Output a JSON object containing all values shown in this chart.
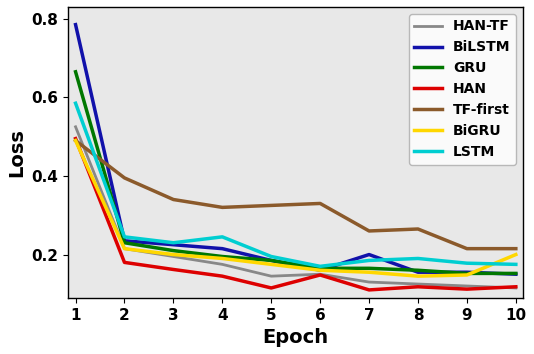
{
  "epochs": [
    1,
    2,
    3,
    4,
    5,
    6,
    7,
    8,
    9,
    10
  ],
  "series": {
    "HAN-TF": {
      "color": "#888888",
      "linewidth": 2.0,
      "values": [
        0.525,
        0.215,
        0.195,
        0.175,
        0.145,
        0.15,
        0.13,
        0.125,
        0.12,
        0.115
      ]
    },
    "BiLSTM": {
      "color": "#1111aa",
      "linewidth": 2.5,
      "values": [
        0.785,
        0.235,
        0.225,
        0.215,
        0.185,
        0.16,
        0.2,
        0.155,
        0.155,
        0.15
      ]
    },
    "GRU": {
      "color": "#007700",
      "linewidth": 2.5,
      "values": [
        0.665,
        0.23,
        0.21,
        0.195,
        0.185,
        0.165,
        0.165,
        0.16,
        0.152,
        0.152
      ]
    },
    "HAN": {
      "color": "#dd0000",
      "linewidth": 2.5,
      "values": [
        0.495,
        0.18,
        0.162,
        0.145,
        0.115,
        0.148,
        0.11,
        0.118,
        0.112,
        0.118
      ]
    },
    "TF-first": {
      "color": "#8B5A2B",
      "linewidth": 2.5,
      "values": [
        0.49,
        0.395,
        0.34,
        0.32,
        0.325,
        0.33,
        0.26,
        0.265,
        0.215,
        0.215
      ]
    },
    "BiGRU": {
      "color": "#FFD700",
      "linewidth": 2.5,
      "values": [
        0.49,
        0.215,
        0.2,
        0.19,
        0.175,
        0.16,
        0.155,
        0.145,
        0.148,
        0.2
      ]
    },
    "LSTM": {
      "color": "#00CED1",
      "linewidth": 2.5,
      "values": [
        0.585,
        0.245,
        0.23,
        0.245,
        0.195,
        0.17,
        0.185,
        0.19,
        0.178,
        0.175
      ]
    }
  },
  "xlabel": "Epoch",
  "ylabel": "Loss",
  "xlim": [
    0.85,
    10.15
  ],
  "ylim": [
    0.09,
    0.83
  ],
  "yticks": [
    0.2,
    0.4,
    0.6,
    0.8
  ],
  "xticks": [
    1,
    2,
    3,
    4,
    5,
    6,
    7,
    8,
    9,
    10
  ],
  "legend_order": [
    "HAN-TF",
    "BiLSTM",
    "GRU",
    "HAN",
    "TF-first",
    "BiGRU",
    "LSTM"
  ],
  "axis_label_fontsize": 14,
  "tick_fontsize": 11,
  "legend_fontsize": 10,
  "bg_color": "#e8e8e8"
}
